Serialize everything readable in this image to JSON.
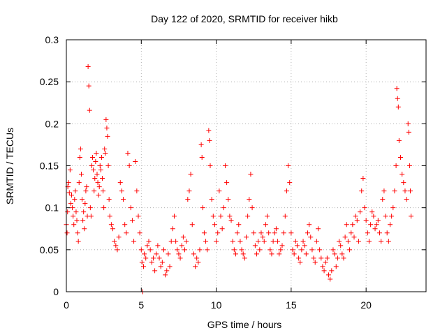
{
  "chart_data": {
    "type": "scatter",
    "title": "Day 122 of 2020, SRMTID for receiver hikb",
    "xlabel": "GPS time / hours",
    "ylabel": "SRMTID / TECUs",
    "xlim": [
      0,
      24
    ],
    "ylim": [
      0,
      0.3
    ],
    "xticks": [
      0,
      5,
      10,
      15,
      20
    ],
    "xtick_labels": [
      "0",
      "5",
      "10",
      "15",
      "20"
    ],
    "yticks": [
      0,
      0.05,
      0.1,
      0.15,
      0.2,
      0.25,
      0.3
    ],
    "ytick_labels": [
      "0",
      "0.05",
      "0.1",
      "0.15",
      "0.2",
      "0.25",
      "0.3"
    ],
    "grid": true,
    "marker": "+",
    "color": "#ff0000",
    "series": [
      {
        "name": "SRMTID",
        "points": [
          [
            0.0,
            0.08
          ],
          [
            0.05,
            0.07
          ],
          [
            0.08,
            0.095
          ],
          [
            0.1,
            0.125
          ],
          [
            0.15,
            0.13
          ],
          [
            0.2,
            0.118
          ],
          [
            0.25,
            0.145
          ],
          [
            0.3,
            0.105
          ],
          [
            0.35,
            0.115
          ],
          [
            0.4,
            0.1
          ],
          [
            0.45,
            0.09
          ],
          [
            0.5,
            0.08
          ],
          [
            0.55,
            0.11
          ],
          [
            0.6,
            0.12
          ],
          [
            0.65,
            0.095
          ],
          [
            0.7,
            0.085
          ],
          [
            0.75,
            0.07
          ],
          [
            0.8,
            0.06
          ],
          [
            0.85,
            0.13
          ],
          [
            0.9,
            0.16
          ],
          [
            0.95,
            0.17
          ],
          [
            1.0,
            0.14
          ],
          [
            1.05,
            0.11
          ],
          [
            1.1,
            0.085
          ],
          [
            1.15,
            0.095
          ],
          [
            1.2,
            0.075
          ],
          [
            1.25,
            0.105
          ],
          [
            1.3,
            0.12
          ],
          [
            1.35,
            0.125
          ],
          [
            1.4,
            0.09
          ],
          [
            1.45,
            0.268
          ],
          [
            1.5,
            0.245
          ],
          [
            1.55,
            0.216
          ],
          [
            1.6,
            0.1
          ],
          [
            1.65,
            0.09
          ],
          [
            1.7,
            0.15
          ],
          [
            1.75,
            0.16
          ],
          [
            1.8,
            0.145
          ],
          [
            1.85,
            0.12
          ],
          [
            1.9,
            0.135
          ],
          [
            1.95,
            0.155
          ],
          [
            2.0,
            0.165
          ],
          [
            2.05,
            0.14
          ],
          [
            2.1,
            0.13
          ],
          [
            2.15,
            0.115
          ],
          [
            2.2,
            0.125
          ],
          [
            2.25,
            0.15
          ],
          [
            2.3,
            0.145
          ],
          [
            2.35,
            0.16
          ],
          [
            2.4,
            0.135
          ],
          [
            2.45,
            0.12
          ],
          [
            2.5,
            0.1
          ],
          [
            2.55,
            0.17
          ],
          [
            2.6,
            0.165
          ],
          [
            2.65,
            0.205
          ],
          [
            2.7,
            0.195
          ],
          [
            2.75,
            0.185
          ],
          [
            2.8,
            0.15
          ],
          [
            2.85,
            0.11
          ],
          [
            2.9,
            0.09
          ],
          [
            3.0,
            0.08
          ],
          [
            3.1,
            0.075
          ],
          [
            3.2,
            0.06
          ],
          [
            3.3,
            0.055
          ],
          [
            3.4,
            0.05
          ],
          [
            3.5,
            0.065
          ],
          [
            3.6,
            0.13
          ],
          [
            3.7,
            0.12
          ],
          [
            3.8,
            0.11
          ],
          [
            3.9,
            0.08
          ],
          [
            4.0,
            0.07
          ],
          [
            4.1,
            0.165
          ],
          [
            4.2,
            0.15
          ],
          [
            4.3,
            0.1
          ],
          [
            4.4,
            0.085
          ],
          [
            4.5,
            0.06
          ],
          [
            4.6,
            0.155
          ],
          [
            4.7,
            0.12
          ],
          [
            4.8,
            0.09
          ],
          [
            4.9,
            0.07
          ],
          [
            5.0,
            0.05
          ],
          [
            5.05,
            0.035
          ],
          [
            5.1,
            0.0
          ],
          [
            5.15,
            0.03
          ],
          [
            5.2,
            0.045
          ],
          [
            5.3,
            0.04
          ],
          [
            5.4,
            0.055
          ],
          [
            5.5,
            0.06
          ],
          [
            5.6,
            0.05
          ],
          [
            5.7,
            0.035
          ],
          [
            5.8,
            0.04
          ],
          [
            5.9,
            0.025
          ],
          [
            6.0,
            0.045
          ],
          [
            6.1,
            0.055
          ],
          [
            6.2,
            0.04
          ],
          [
            6.3,
            0.03
          ],
          [
            6.4,
            0.035
          ],
          [
            6.5,
            0.05
          ],
          [
            6.6,
            0.02
          ],
          [
            6.7,
            0.025
          ],
          [
            6.8,
            0.045
          ],
          [
            6.9,
            0.03
          ],
          [
            7.0,
            0.06
          ],
          [
            7.1,
            0.075
          ],
          [
            7.2,
            0.09
          ],
          [
            7.3,
            0.06
          ],
          [
            7.4,
            0.05
          ],
          [
            7.5,
            0.045
          ],
          [
            7.6,
            0.04
          ],
          [
            7.7,
            0.055
          ],
          [
            7.8,
            0.065
          ],
          [
            7.9,
            0.05
          ],
          [
            8.0,
            0.06
          ],
          [
            8.1,
            0.11
          ],
          [
            8.2,
            0.12
          ],
          [
            8.3,
            0.14
          ],
          [
            8.4,
            0.08
          ],
          [
            8.5,
            0.045
          ],
          [
            8.6,
            0.03
          ],
          [
            8.7,
            0.04
          ],
          [
            8.8,
            0.035
          ],
          [
            8.9,
            0.05
          ],
          [
            9.0,
            0.175
          ],
          [
            9.05,
            0.16
          ],
          [
            9.1,
            0.1
          ],
          [
            9.2,
            0.07
          ],
          [
            9.3,
            0.06
          ],
          [
            9.4,
            0.05
          ],
          [
            9.5,
            0.192
          ],
          [
            9.55,
            0.18
          ],
          [
            9.6,
            0.15
          ],
          [
            9.7,
            0.11
          ],
          [
            9.8,
            0.09
          ],
          [
            9.9,
            0.08
          ],
          [
            10.0,
            0.06
          ],
          [
            10.1,
            0.07
          ],
          [
            10.2,
            0.12
          ],
          [
            10.3,
            0.09
          ],
          [
            10.4,
            0.075
          ],
          [
            10.5,
            0.1
          ],
          [
            10.6,
            0.15
          ],
          [
            10.7,
            0.13
          ],
          [
            10.8,
            0.11
          ],
          [
            10.9,
            0.09
          ],
          [
            11.0,
            0.085
          ],
          [
            11.1,
            0.06
          ],
          [
            11.2,
            0.05
          ],
          [
            11.3,
            0.045
          ],
          [
            11.4,
            0.07
          ],
          [
            11.5,
            0.08
          ],
          [
            11.6,
            0.06
          ],
          [
            11.7,
            0.05
          ],
          [
            11.8,
            0.045
          ],
          [
            11.9,
            0.04
          ],
          [
            12.0,
            0.065
          ],
          [
            12.1,
            0.09
          ],
          [
            12.2,
            0.11
          ],
          [
            12.3,
            0.14
          ],
          [
            12.4,
            0.1
          ],
          [
            12.5,
            0.07
          ],
          [
            12.6,
            0.055
          ],
          [
            12.7,
            0.045
          ],
          [
            12.8,
            0.06
          ],
          [
            12.9,
            0.05
          ],
          [
            13.0,
            0.07
          ],
          [
            13.1,
            0.065
          ],
          [
            13.2,
            0.06
          ],
          [
            13.3,
            0.08
          ],
          [
            13.4,
            0.09
          ],
          [
            13.5,
            0.07
          ],
          [
            13.6,
            0.05
          ],
          [
            13.7,
            0.045
          ],
          [
            13.8,
            0.06
          ],
          [
            13.9,
            0.07
          ],
          [
            14.0,
            0.075
          ],
          [
            14.1,
            0.06
          ],
          [
            14.2,
            0.045
          ],
          [
            14.3,
            0.05
          ],
          [
            14.4,
            0.055
          ],
          [
            14.5,
            0.07
          ],
          [
            14.6,
            0.09
          ],
          [
            14.7,
            0.12
          ],
          [
            14.8,
            0.15
          ],
          [
            14.9,
            0.13
          ],
          [
            15.0,
            0.07
          ],
          [
            15.1,
            0.05
          ],
          [
            15.2,
            0.045
          ],
          [
            15.3,
            0.06
          ],
          [
            15.4,
            0.055
          ],
          [
            15.5,
            0.04
          ],
          [
            15.6,
            0.035
          ],
          [
            15.7,
            0.05
          ],
          [
            15.8,
            0.06
          ],
          [
            15.9,
            0.055
          ],
          [
            16.0,
            0.045
          ],
          [
            16.1,
            0.07
          ],
          [
            16.2,
            0.08
          ],
          [
            16.3,
            0.065
          ],
          [
            16.4,
            0.05
          ],
          [
            16.5,
            0.04
          ],
          [
            16.6,
            0.035
          ],
          [
            16.7,
            0.06
          ],
          [
            16.8,
            0.075
          ],
          [
            16.9,
            0.05
          ],
          [
            17.0,
            0.04
          ],
          [
            17.1,
            0.03
          ],
          [
            17.2,
            0.025
          ],
          [
            17.3,
            0.035
          ],
          [
            17.4,
            0.04
          ],
          [
            17.5,
            0.02
          ],
          [
            17.6,
            0.015
          ],
          [
            17.7,
            0.025
          ],
          [
            17.8,
            0.05
          ],
          [
            17.9,
            0.045
          ],
          [
            18.0,
            0.03
          ],
          [
            18.1,
            0.04
          ],
          [
            18.2,
            0.06
          ],
          [
            18.3,
            0.055
          ],
          [
            18.4,
            0.045
          ],
          [
            18.5,
            0.04
          ],
          [
            18.6,
            0.065
          ],
          [
            18.7,
            0.08
          ],
          [
            18.8,
            0.06
          ],
          [
            18.9,
            0.05
          ],
          [
            19.0,
            0.07
          ],
          [
            19.1,
            0.08
          ],
          [
            19.2,
            0.065
          ],
          [
            19.3,
            0.09
          ],
          [
            19.4,
            0.085
          ],
          [
            19.5,
            0.06
          ],
          [
            19.6,
            0.095
          ],
          [
            19.7,
            0.12
          ],
          [
            19.8,
            0.135
          ],
          [
            19.9,
            0.1
          ],
          [
            20.0,
            0.085
          ],
          [
            20.1,
            0.07
          ],
          [
            20.2,
            0.06
          ],
          [
            20.3,
            0.08
          ],
          [
            20.4,
            0.095
          ],
          [
            20.5,
            0.09
          ],
          [
            20.6,
            0.075
          ],
          [
            20.7,
            0.08
          ],
          [
            20.8,
            0.085
          ],
          [
            20.9,
            0.07
          ],
          [
            21.0,
            0.06
          ],
          [
            21.1,
            0.11
          ],
          [
            21.2,
            0.12
          ],
          [
            21.3,
            0.09
          ],
          [
            21.4,
            0.07
          ],
          [
            21.5,
            0.06
          ],
          [
            21.6,
            0.08
          ],
          [
            21.7,
            0.09
          ],
          [
            21.8,
            0.1
          ],
          [
            21.9,
            0.12
          ],
          [
            22.0,
            0.15
          ],
          [
            22.05,
            0.242
          ],
          [
            22.1,
            0.23
          ],
          [
            22.15,
            0.22
          ],
          [
            22.2,
            0.18
          ],
          [
            22.3,
            0.16
          ],
          [
            22.4,
            0.14
          ],
          [
            22.5,
            0.13
          ],
          [
            22.6,
            0.12
          ],
          [
            22.7,
            0.11
          ],
          [
            22.8,
            0.2
          ],
          [
            22.85,
            0.19
          ],
          [
            22.9,
            0.15
          ],
          [
            22.95,
            0.12
          ],
          [
            23.0,
            0.09
          ]
        ]
      }
    ]
  }
}
